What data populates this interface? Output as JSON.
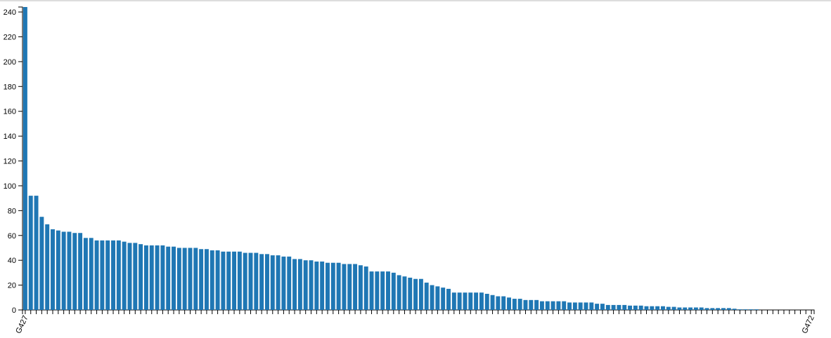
{
  "chart_data": {
    "type": "bar",
    "categories": [
      "G427",
      null,
      null,
      null,
      null,
      null,
      null,
      null,
      null,
      null,
      null,
      null,
      null,
      null,
      null,
      null,
      null,
      null,
      null,
      null,
      null,
      null,
      null,
      null,
      null,
      null,
      null,
      null,
      null,
      null,
      null,
      null,
      null,
      null,
      null,
      null,
      null,
      null,
      null,
      null,
      null,
      null,
      null,
      null,
      null,
      null,
      null,
      null,
      null,
      null,
      null,
      null,
      null,
      null,
      null,
      null,
      null,
      null,
      null,
      null,
      null,
      null,
      null,
      null,
      null,
      null,
      null,
      null,
      null,
      null,
      null,
      null,
      null,
      null,
      null,
      null,
      null,
      null,
      null,
      null,
      null,
      null,
      null,
      null,
      null,
      null,
      null,
      null,
      null,
      null,
      null,
      null,
      null,
      null,
      null,
      null,
      null,
      null,
      null,
      null,
      null,
      null,
      null,
      null,
      null,
      null,
      null,
      null,
      null,
      null,
      null,
      null,
      null,
      null,
      null,
      null,
      null,
      null,
      null,
      null,
      null,
      null,
      null,
      null,
      null,
      null,
      null,
      null,
      null,
      null,
      null,
      null,
      null,
      null,
      null,
      null,
      null,
      null,
      null,
      null,
      null,
      null,
      null,
      "G472"
    ],
    "values": [
      244,
      92,
      92,
      75,
      69,
      65,
      64,
      63,
      63,
      62,
      62,
      58,
      58,
      56,
      56,
      56,
      56,
      56,
      55,
      54,
      54,
      53,
      52,
      52,
      52,
      52,
      51,
      51,
      50,
      50,
      50,
      50,
      49,
      49,
      48,
      48,
      47,
      47,
      47,
      47,
      46,
      46,
      46,
      45,
      45,
      44,
      44,
      43,
      43,
      41,
      41,
      40,
      40,
      39,
      39,
      38,
      38,
      38,
      37,
      37,
      37,
      36,
      35,
      31,
      31,
      31,
      31,
      30,
      28,
      27,
      26,
      25,
      25,
      22,
      20,
      19,
      18,
      17,
      14,
      14,
      14,
      14,
      14,
      14,
      13,
      12,
      11,
      11,
      10,
      9,
      9,
      8,
      8,
      8,
      7,
      7,
      7,
      7,
      7,
      6,
      6,
      6,
      6,
      6,
      5,
      5,
      4,
      4,
      4,
      4,
      3.5,
      3.5,
      3.5,
      3,
      3,
      3,
      3,
      2.5,
      2.5,
      2,
      2,
      2,
      2,
      2,
      1.5,
      1.5,
      1.5,
      1.5,
      1.5,
      1,
      0.5,
      0.5,
      0.5,
      0.5,
      0,
      0,
      0,
      0,
      0,
      0,
      0,
      0,
      0,
      0
    ],
    "color": "#1f77b4",
    "ylim": [
      0,
      244
    ],
    "yticks": [
      0,
      20,
      40,
      60,
      80,
      100,
      120,
      140,
      160,
      180,
      200,
      220,
      240
    ]
  }
}
